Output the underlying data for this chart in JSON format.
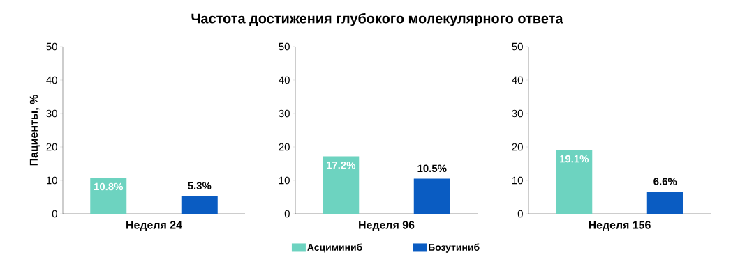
{
  "chart_data": [
    {
      "type": "bar",
      "xlabel": "Неделя 24",
      "ylabel": "Пациенты, %",
      "categories": [
        null,
        null
      ],
      "tick_labels": "y",
      "ylim": [
        0,
        50
      ],
      "yticks": [
        0,
        10,
        20,
        30,
        40,
        50
      ],
      "series": [
        {
          "color": "#6dd3c0",
          "values": [
            10.8,
            null
          ],
          "value_labels": [
            "10.8%",
            null
          ]
        },
        {
          "color": "#0a5cc2",
          "values": [
            null,
            5.3
          ],
          "value_labels": [
            null,
            "5.3%"
          ]
        }
      ]
    },
    {
      "type": "bar",
      "title": "Частота достижения глубокого молекулярного ответа",
      "xlabel": "Неделя 96",
      "legend": "bottom",
      "categories": [
        null,
        null
      ],
      "tick_labels": "y",
      "ylim": [
        0,
        50
      ],
      "yticks": [
        0,
        10,
        20,
        30,
        40,
        50
      ],
      "series": [
        {
          "name": "Асциминиб",
          "color": "#6dd3c0",
          "values": [
            17.2,
            null
          ],
          "value_labels": [
            "17.2%",
            null
          ]
        },
        {
          "name": "Бозутиниб",
          "color": "#0a5cc2",
          "values": [
            null,
            10.5
          ],
          "value_labels": [
            null,
            "10.5%"
          ]
        }
      ]
    },
    {
      "type": "bar",
      "xlabel": "Неделя 156",
      "categories": [
        null,
        null
      ],
      "tick_labels": "y",
      "ylim": [
        0,
        50
      ],
      "yticks": [
        0,
        10,
        20,
        30,
        40,
        50
      ],
      "series": [
        {
          "color": "#6dd3c0",
          "values": [
            19.1,
            null
          ],
          "value_labels": [
            "19.1%",
            null
          ]
        },
        {
          "color": "#0a5cc2",
          "values": [
            null,
            6.6
          ],
          "value_labels": [
            null,
            "6.6%"
          ]
        }
      ]
    }
  ]
}
